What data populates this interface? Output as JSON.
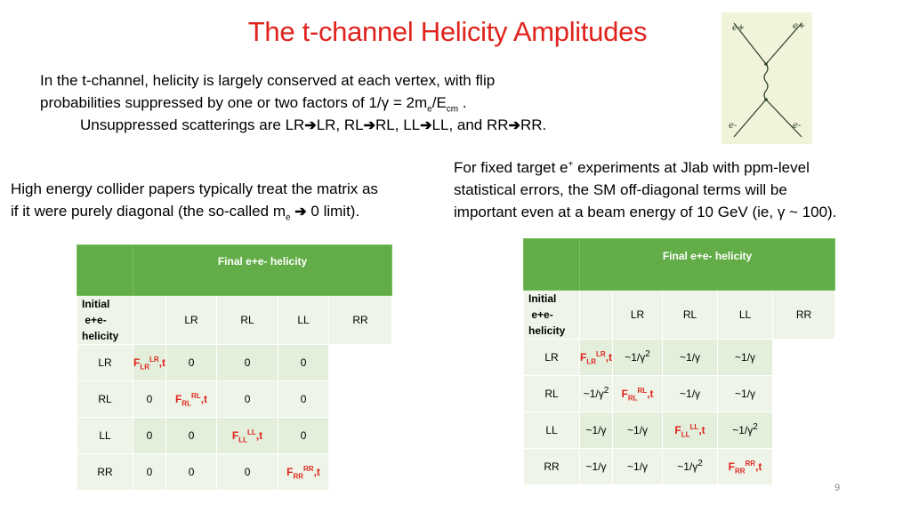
{
  "title": "The t-channel Helicity Amplitudes",
  "intro": {
    "l1": "In the t-channel, helicity is largely conserved at each vertex, with flip",
    "l2a": "probabilities suppressed by one or two factors of  1/γ = 2m",
    "l2_sub1": "e",
    "l2b": "/E",
    "l2_sub2": "cm",
    "l2c": " .",
    "l3a": "Unsuppressed scatterings are LR",
    "l3b": "LR, RL",
    "l3c": "RL, LL",
    "l3d": "LL, and RR",
    "l3e": "RR.",
    "arrow": "➔"
  },
  "left_para": {
    "l1": "High energy collider papers typically treat the matrix as",
    "l2a": " if it were purely diagonal (the so-called m",
    "l2_sub": "e",
    "l2b": " ",
    "l2c": " 0 limit).",
    "arrow": "➔"
  },
  "right_para": {
    "l1a": "For  fixed target e",
    "l1_sup": "+",
    "l1b": " experiments at Jlab with ppm-level",
    "l2": "statistical errors, the SM off-diagonal terms will be",
    "l3": "important even at a beam energy of 10 GeV (ie, γ ~ 100)."
  },
  "diagram": {
    "labels": [
      "e+",
      "e+",
      "e-",
      "e-"
    ],
    "line_color": "#2c3e2a",
    "bg_color": "#f1f3da"
  },
  "table_common": {
    "header": "Final e+e- helicity",
    "row_label": [
      "Initial",
      "e+e-",
      "helicity"
    ],
    "columns": [
      "LR",
      "RL",
      "LL",
      "RR"
    ]
  },
  "table_left": {
    "rows": [
      {
        "label": "LR",
        "cells": [
          {
            "f": "F",
            "sub": "LR",
            "sup": "LR",
            "t": ",t"
          },
          "0",
          "0",
          "0"
        ]
      },
      {
        "label": "RL",
        "cells": [
          "0",
          {
            "f": "F",
            "sub": "RL",
            "sup": "RL",
            "t": ",t"
          },
          "0",
          "0"
        ]
      },
      {
        "label": "LL",
        "cells": [
          "0",
          "0",
          {
            "f": "F",
            "sub": "LL",
            "sup": "LL",
            "t": ",t"
          },
          "0"
        ]
      },
      {
        "label": "RR",
        "cells": [
          "0",
          "0",
          "0",
          {
            "f": "F",
            "sub": "RR",
            "sup": "RR",
            "t": ",t"
          }
        ]
      }
    ]
  },
  "table_right": {
    "rows": [
      {
        "label": "LR",
        "cells": [
          {
            "f": "F",
            "sub": "LR",
            "sup": "LR",
            "t": ",t"
          },
          {
            "v": "~1/γ",
            "sup": "2"
          },
          {
            "v": "~1/γ"
          },
          {
            "v": "~1/γ"
          }
        ]
      },
      {
        "label": "RL",
        "cells": [
          {
            "v": "~1/γ",
            "sup": "2"
          },
          {
            "f": "F",
            "sub": "RL",
            "sup": "RL",
            "t": ",t"
          },
          {
            "v": "~1/γ"
          },
          {
            "v": "~1/γ"
          }
        ]
      },
      {
        "label": "LL",
        "cells": [
          {
            "v": "~1/γ"
          },
          {
            "v": "~1/γ"
          },
          {
            "f": "F",
            "sub": "LL",
            "sup": "LL",
            "t": ",t"
          },
          {
            "v": "~1/γ",
            "sup": "2"
          }
        ]
      },
      {
        "label": "RR",
        "cells": [
          {
            "v": "~1/γ"
          },
          {
            "v": "~1/γ"
          },
          {
            "v": "~1/γ",
            "sup": "2"
          },
          {
            "f": "F",
            "sub": "RR",
            "sup": "RR",
            "t": ",t"
          }
        ]
      }
    ]
  },
  "page_number": "9"
}
